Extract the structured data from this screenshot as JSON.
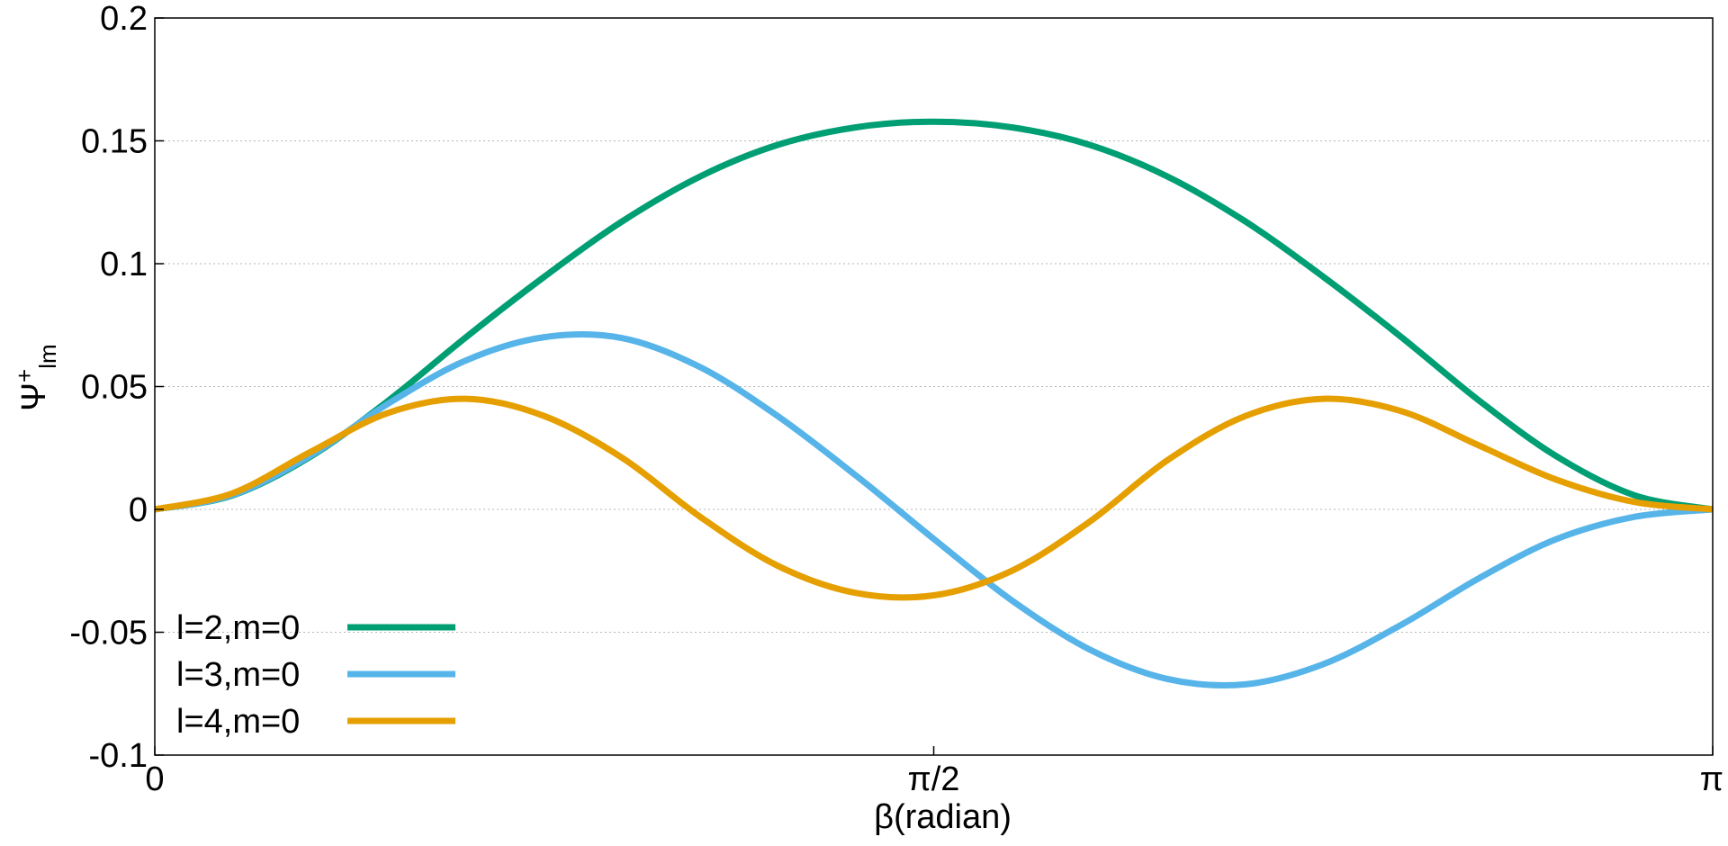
{
  "chart_data": {
    "type": "line",
    "title": "",
    "xlabel": "β(radian)",
    "ylabel": "Ψ+lm",
    "ylabel_parts": {
      "main": "Ψ",
      "sup": "+",
      "sub": "lm"
    },
    "xlim": [
      0,
      3.14159
    ],
    "ylim": [
      -0.1,
      0.2
    ],
    "grid": true,
    "legend_position": "bottom-left",
    "x_ticks": [
      {
        "value": 0,
        "label": "0"
      },
      {
        "value": 1.5708,
        "label": "π/2"
      },
      {
        "value": 3.14159,
        "label": "π"
      }
    ],
    "y_ticks": [
      {
        "value": 0.2,
        "label": "0.2"
      },
      {
        "value": 0.15,
        "label": "0.15"
      },
      {
        "value": 0.1,
        "label": "0.1"
      },
      {
        "value": 0.05,
        "label": "0.05"
      },
      {
        "value": 0,
        "label": "0"
      },
      {
        "value": -0.05,
        "label": "-0.05"
      },
      {
        "value": -0.1,
        "label": "-0.1"
      }
    ],
    "x": [
      0,
      0.1571,
      0.3142,
      0.4712,
      0.6283,
      0.7854,
      0.9425,
      1.0996,
      1.2566,
      1.4137,
      1.5708,
      1.7279,
      1.885,
      2.042,
      2.1991,
      2.3562,
      2.5133,
      2.6704,
      2.8274,
      2.9845,
      3.1416
    ],
    "series": [
      {
        "name": "l=2,m=0",
        "color": "#009e73",
        "values": [
          0,
          0.0057,
          0.0215,
          0.0443,
          0.0702,
          0.0947,
          0.1172,
          0.1355,
          0.1484,
          0.1555,
          0.1578,
          0.1555,
          0.1484,
          0.1355,
          0.1172,
          0.0947,
          0.0702,
          0.0443,
          0.0215,
          0.0057,
          0
        ]
      },
      {
        "name": "l=3,m=0",
        "color": "#56b4e9",
        "values": [
          0,
          0.0059,
          0.0219,
          0.0431,
          0.0607,
          0.0701,
          0.0697,
          0.0579,
          0.0379,
          0.0138,
          -0.012,
          -0.037,
          -0.057,
          -0.069,
          -0.0712,
          -0.063,
          -0.047,
          -0.028,
          -0.012,
          -0.003,
          0
        ]
      },
      {
        "name": "l=4,m=0",
        "color": "#e69f00",
        "values": [
          0,
          0.0066,
          0.0234,
          0.0393,
          0.045,
          0.038,
          0.021,
          -0.003,
          -0.023,
          -0.034,
          -0.035,
          -0.025,
          -0.005,
          0.02,
          0.038,
          0.045,
          0.04,
          0.026,
          0.012,
          0.003,
          0
        ]
      }
    ]
  }
}
